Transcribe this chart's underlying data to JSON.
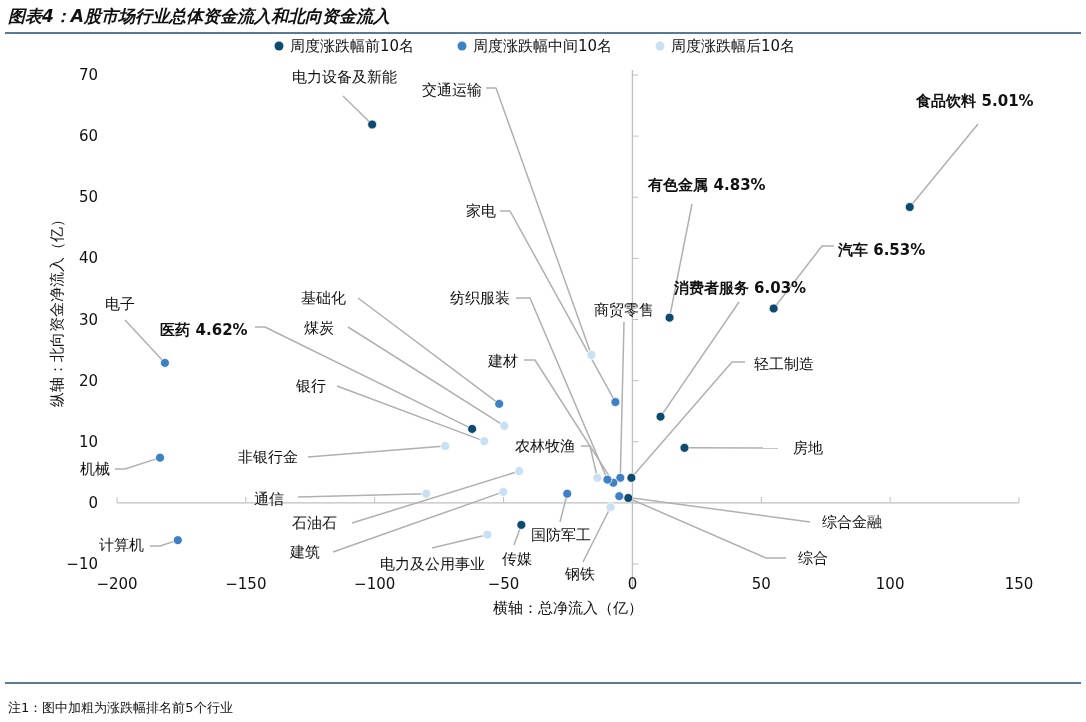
{
  "chart_data": {
    "type": "scatter",
    "title": "图表4：A股市场行业总体资金流入和北向资金流入",
    "xlabel": "横轴：总净流入（亿）",
    "ylabel": "纵轴：北向资金净流入（亿）",
    "xlim": [
      -200,
      150
    ],
    "ylim": [
      -10,
      70
    ],
    "xticks": [
      {
        "value": -200,
        "label": "−200"
      },
      {
        "value": -150,
        "label": "−150"
      },
      {
        "value": -100,
        "label": "−100"
      },
      {
        "value": -50,
        "label": "−50"
      },
      0,
      50,
      100,
      150
    ],
    "yticks": [
      {
        "value": -10,
        "label": "−10"
      },
      0,
      10,
      20,
      30,
      40,
      50,
      60,
      70
    ],
    "legend": "top",
    "marker": "circle",
    "series": [
      {
        "name": "周度涨跌幅前10名",
        "color": "#0d4a70",
        "x": [
          107.6,
          54.8,
          14.4,
          10.9,
          -62.2,
          -101,
          -0.4,
          20.2,
          -1.6,
          -43.1
        ],
        "values": [
          48.4,
          31.8,
          30.3,
          14.1,
          12.1,
          61.9,
          4.1,
          9.0,
          0.8,
          -3.6
        ]
      },
      {
        "name": "周度涨跌幅中间10名",
        "color": "#3f7fc6",
        "x": [
          -5.1,
          -4.7,
          -7.4,
          -9.7,
          -6.6,
          -25.3,
          -51.7,
          -181.4,
          -183.3,
          -176.4
        ],
        "values": [
          1.1,
          4.1,
          3.3,
          3.8,
          16.5,
          1.5,
          16.2,
          22.9,
          7.4,
          -6.1
        ]
      },
      {
        "name": "周度涨跌幅后10名",
        "color": "#c9dff2",
        "x": [
          -8.5,
          -13.6,
          -15.9,
          -56.3,
          -50.1,
          -43.9,
          -80.0,
          -72.6,
          -57.5,
          -49.7
        ],
        "values": [
          -0.7,
          4.1,
          24.2,
          -5.2,
          1.8,
          5.2,
          1.5,
          9.3,
          10.1,
          12.6
        ]
      }
    ],
    "annotations": [
      {
        "text": "食品饮料 5.01%",
        "x": 107.6,
        "y": 48.4
      },
      {
        "text": "汽车 6.53%",
        "x": 54.8,
        "y": 31.8
      },
      {
        "text": "有色金属 4.83%",
        "x": 14.4,
        "y": 30.3
      },
      {
        "text": "消费者服务 6.03%",
        "x": 10.9,
        "y": 14.1
      },
      {
        "text": "医药 4.62%",
        "x": -62.2,
        "y": 12.1
      },
      {
        "text": "电力设备及新能",
        "x": -101,
        "y": 61.9
      },
      {
        "text": "轻工制造",
        "x": -0.4,
        "y": 4.1
      },
      {
        "text": "房地",
        "x": 20.2,
        "y": 9.0
      },
      {
        "text": "综合",
        "x": -1.6,
        "y": 0.8
      },
      {
        "text": "传媒",
        "x": -43.1,
        "y": -3.6
      },
      {
        "text": "综合金融",
        "x": -5.1,
        "y": 1.1
      },
      {
        "text": "商贸零售",
        "x": -4.7,
        "y": 4.1
      },
      {
        "text": "建材",
        "x": -7.4,
        "y": 3.3
      },
      {
        "text": "纺织服装",
        "x": -9.7,
        "y": 3.8
      },
      {
        "text": "家电",
        "x": -6.6,
        "y": 16.5
      },
      {
        "text": "国防军工",
        "x": -25.3,
        "y": 1.5
      },
      {
        "text": "基础化",
        "x": -51.7,
        "y": 16.2
      },
      {
        "text": "电子",
        "x": -181.4,
        "y": 22.9
      },
      {
        "text": "机械",
        "x": -183.3,
        "y": 7.4
      },
      {
        "text": "计算机",
        "x": -176.4,
        "y": -6.1
      },
      {
        "text": "钢铁",
        "x": -8.5,
        "y": -0.7
      },
      {
        "text": "农林牧渔",
        "x": -13.6,
        "y": 4.1
      },
      {
        "text": "交通运输",
        "x": -15.9,
        "y": 24.2
      },
      {
        "text": "电力及公用事业",
        "x": -56.3,
        "y": -5.2
      },
      {
        "text": "建筑",
        "x": -50.1,
        "y": 1.8
      },
      {
        "text": "石油石",
        "x": -43.9,
        "y": 5.2
      },
      {
        "text": "通信",
        "x": -80.0,
        "y": 1.5
      },
      {
        "text": "非银行金",
        "x": -72.6,
        "y": 9.3
      },
      {
        "text": "银行",
        "x": -57.5,
        "y": 10.1
      },
      {
        "text": "煤炭",
        "x": -49.7,
        "y": 12.6
      },
      "注1：图中加粗为涨跌幅排名前5个行业"
    ]
  }
}
